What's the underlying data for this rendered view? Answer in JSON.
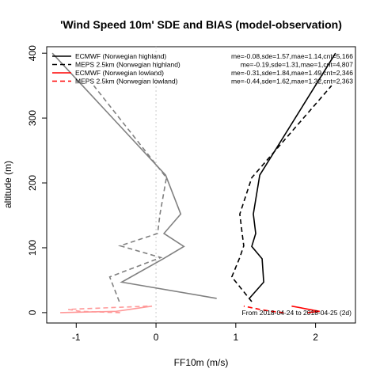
{
  "chart_data": {
    "type": "line",
    "title": "'Wind Speed 10m' SDE and BIAS (model-observation)",
    "xlabel": "FF10m (m/s)",
    "ylabel": "altitude (m)",
    "xlim": [
      -1.37,
      2.5
    ],
    "ylim": [
      -16,
      410
    ],
    "xticks": [
      -1,
      0,
      1,
      2
    ],
    "yticks": [
      0,
      100,
      200,
      300,
      400
    ],
    "reference_line": {
      "x": 0,
      "style": "dotted",
      "color": "#cccccc"
    },
    "note": "From 2018-04-24 to 2018-04-25 (2d)",
    "legend_position": "top",
    "series": [
      {
        "name": "ECMWF (Norwegian highland)",
        "stats": "me=-0.08,sde=1.57,mae=1.14,cnt=5,166",
        "legend_color": "#000000",
        "dash": "solid",
        "bias_color": "#808080",
        "sde_color": "#000000",
        "altitude": [
          22,
          47,
          83,
          102,
          122,
          152,
          212,
          400
        ],
        "bias": [
          0.76,
          -0.43,
          0.09,
          0.35,
          0.1,
          0.31,
          0.12,
          -1.3
        ],
        "sde": [
          1.17,
          1.35,
          1.33,
          1.2,
          1.25,
          1.22,
          1.3,
          2.25
        ]
      },
      {
        "name": "MEPS 2.5km (Norwegian highland)",
        "stats": "me=-0.19,sde=1.31,mae=1,cnt=4,807",
        "legend_color": "#000000",
        "dash": "dashed",
        "bias_color": "#808080",
        "sde_color": "#000000",
        "altitude": [
          17,
          55,
          85,
          103,
          122,
          152,
          208,
          350
        ],
        "bias": [
          -0.46,
          -0.58,
          0.06,
          -0.45,
          0.02,
          0.05,
          0.13,
          -0.78
        ],
        "sde": [
          1.2,
          0.95,
          1.05,
          1.1,
          1.08,
          1.05,
          1.2,
          2.2
        ]
      },
      {
        "name": "ECMWF (Norwegian lowland)",
        "stats": "me=-0.31,sde=1.84,mae=1.49,cnt=2,346",
        "legend_color": "#ff0000",
        "dash": "solid",
        "bias_color": "#ff9999",
        "sde_color": "#ff0000",
        "altitude": [
          0,
          2,
          10
        ],
        "bias": [
          -1.2,
          -0.5,
          -0.05
        ],
        "sde": [
          1.9,
          2.05,
          1.7
        ]
      },
      {
        "name": "MEPS 2.5km (Norwegian lowland)",
        "stats": "me=-0.44,sde=1.62,mae=1.32,cnt=2,363",
        "legend_color": "#ff0000",
        "dash": "dashed",
        "bias_color": "#ff9999",
        "sde_color": "#ff0000",
        "altitude": [
          0,
          2,
          5,
          10
        ],
        "bias": [
          -0.45,
          -0.95,
          -1.1,
          -0.1
        ],
        "sde": [
          1.6,
          1.45,
          1.3,
          1.1
        ]
      }
    ]
  }
}
